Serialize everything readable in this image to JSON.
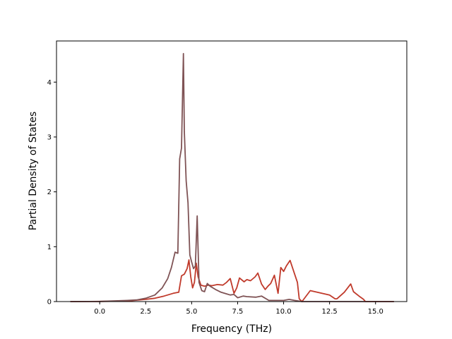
{
  "chart_data": {
    "type": "line",
    "title": "",
    "xlabel": "Frequency (THz)",
    "ylabel": "Partial Density of States",
    "xlim": [
      -2.35,
      16.7
    ],
    "ylim": [
      0,
      4.75
    ],
    "xticks": [
      0.0,
      2.5,
      5.0,
      7.5,
      10.0,
      12.5,
      15.0
    ],
    "xtick_labels": [
      "0.0",
      "2.5",
      "5.0",
      "7.5",
      "10.0",
      "12.5",
      "15.0"
    ],
    "yticks": [
      0,
      1,
      2,
      3,
      4
    ],
    "ytick_labels": [
      "0",
      "1",
      "2",
      "3",
      "4"
    ],
    "grid": false,
    "legend": "none",
    "series": [
      {
        "color": "#c03a2b",
        "x": [
          -1.6,
          0.0,
          1.5,
          2.5,
          3.0,
          3.5,
          4.0,
          4.3,
          4.45,
          4.6,
          4.75,
          4.85,
          4.95,
          5.05,
          5.15,
          5.25,
          5.35,
          5.5,
          5.7,
          5.9,
          6.1,
          6.4,
          6.7,
          6.9,
          7.1,
          7.3,
          7.45,
          7.6,
          7.85,
          8.0,
          8.2,
          8.45,
          8.6,
          8.8,
          9.0,
          9.15,
          9.3,
          9.5,
          9.7,
          9.85,
          10.0,
          10.15,
          10.35,
          10.55,
          10.75,
          10.85,
          11.0,
          11.45,
          12.5,
          12.8,
          12.9,
          13.3,
          13.65,
          13.8,
          14.1,
          14.35,
          14.45,
          14.6,
          16.0
        ],
        "y": [
          0,
          0.003,
          0.01,
          0.04,
          0.06,
          0.1,
          0.15,
          0.17,
          0.47,
          0.5,
          0.6,
          0.76,
          0.45,
          0.25,
          0.35,
          0.7,
          0.45,
          0.3,
          0.28,
          0.3,
          0.29,
          0.31,
          0.3,
          0.35,
          0.42,
          0.15,
          0.25,
          0.43,
          0.36,
          0.4,
          0.38,
          0.45,
          0.52,
          0.32,
          0.22,
          0.28,
          0.33,
          0.48,
          0.15,
          0.62,
          0.55,
          0.65,
          0.75,
          0.55,
          0.35,
          0.05,
          0.0,
          0.2,
          0.12,
          0.05,
          0.05,
          0.17,
          0.32,
          0.18,
          0.1,
          0.04,
          0.0,
          0.0,
          0.0
        ]
      },
      {
        "color": "#7f5355",
        "x": [
          -1.6,
          0.0,
          1.5,
          2.0,
          2.5,
          3.0,
          3.4,
          3.7,
          3.9,
          4.1,
          4.25,
          4.35,
          4.45,
          4.55,
          4.6,
          4.7,
          4.8,
          4.9,
          5.0,
          5.1,
          5.2,
          5.3,
          5.4,
          5.55,
          5.7,
          5.85,
          6.0,
          6.3,
          6.6,
          6.9,
          7.1,
          7.3,
          7.5,
          7.8,
          8.0,
          8.5,
          8.8,
          9.2,
          10.0,
          10.3,
          10.6,
          11.0,
          16.0
        ],
        "y": [
          0,
          0.003,
          0.02,
          0.03,
          0.06,
          0.12,
          0.25,
          0.42,
          0.62,
          0.9,
          0.88,
          2.6,
          2.8,
          4.52,
          3.1,
          2.2,
          1.8,
          0.85,
          0.72,
          0.6,
          0.65,
          1.56,
          0.35,
          0.2,
          0.18,
          0.33,
          0.28,
          0.22,
          0.17,
          0.14,
          0.12,
          0.13,
          0.07,
          0.1,
          0.09,
          0.08,
          0.1,
          0.02,
          0.02,
          0.04,
          0.02,
          0.0,
          0.0
        ]
      }
    ]
  }
}
